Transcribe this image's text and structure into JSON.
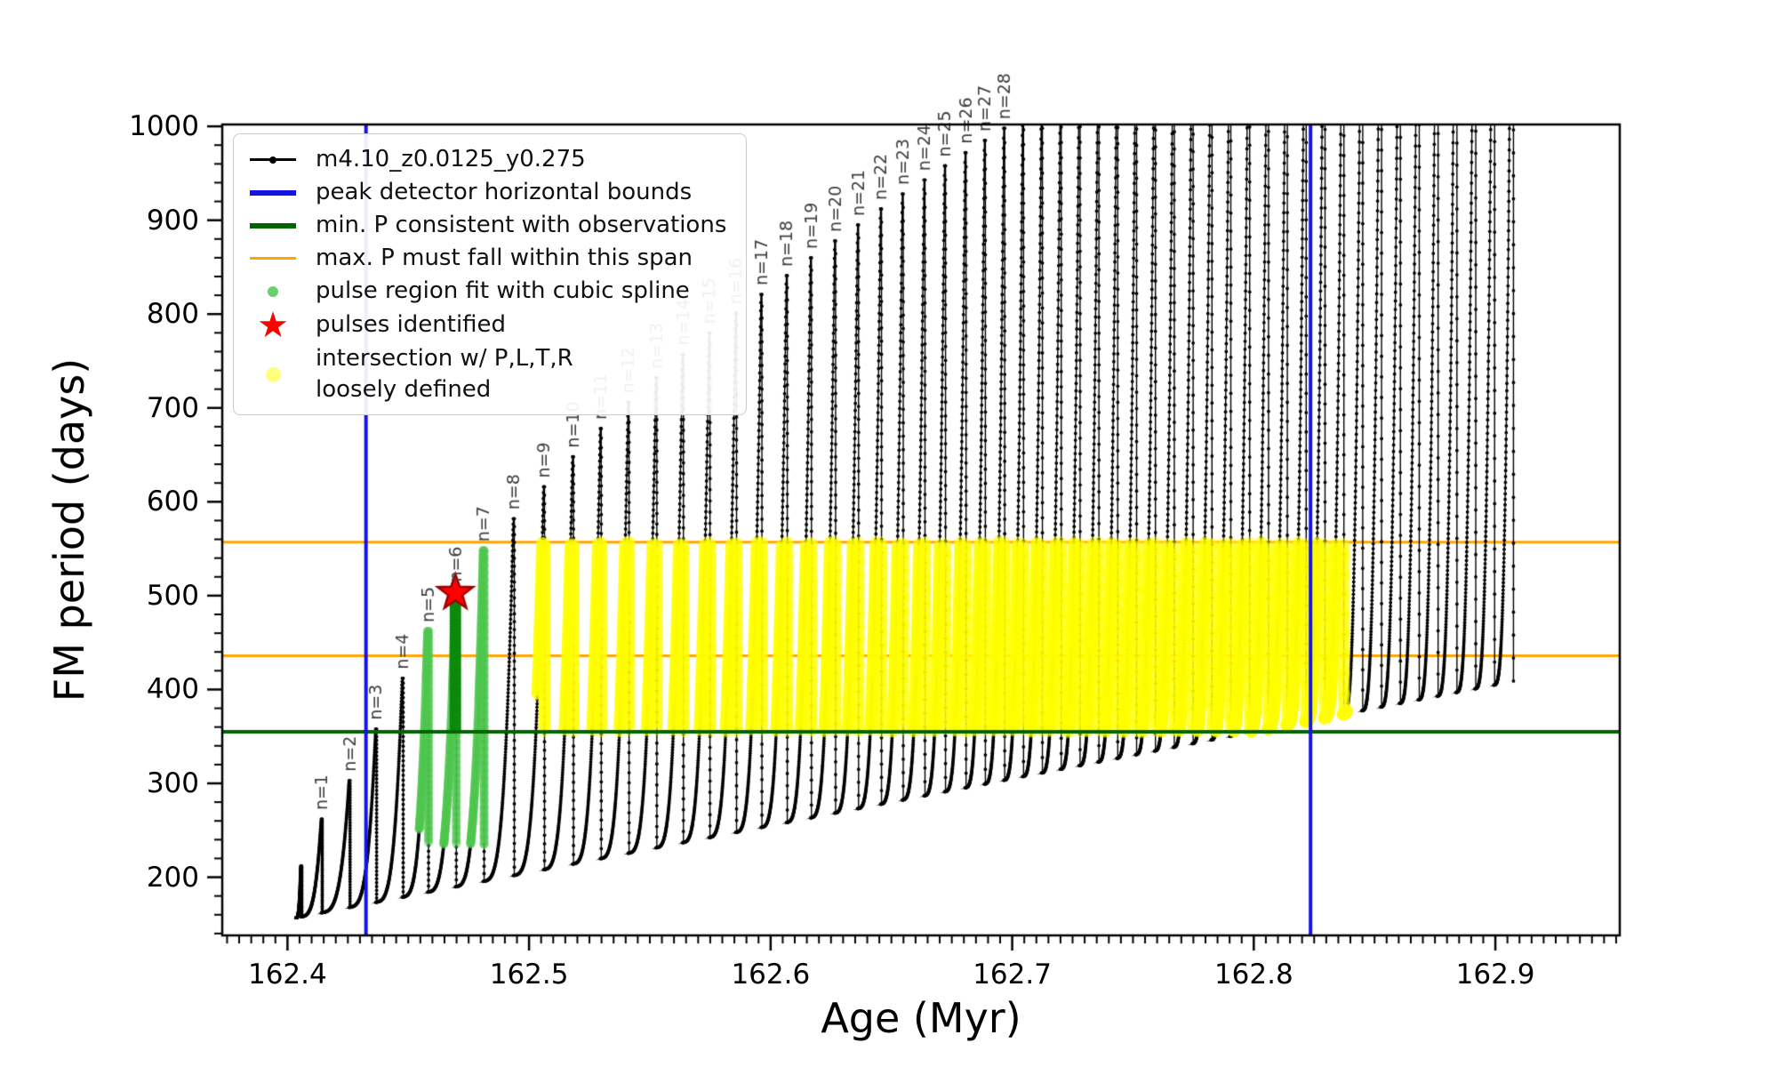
{
  "axes": {
    "xlabel": "Age (Myr)",
    "ylabel": "FM period (days)",
    "xlim": [
      162.373,
      162.9515
    ],
    "ylim": [
      138,
      1002
    ],
    "xticks": [
      162.4,
      162.5,
      162.6,
      162.7,
      162.8,
      162.9
    ],
    "xtick_labels": [
      "162.4",
      "162.5",
      "162.6",
      "162.7",
      "162.8",
      "162.9"
    ],
    "yticks": [
      200,
      300,
      400,
      500,
      600,
      700,
      800,
      900,
      1000
    ],
    "ytick_labels": [
      "200",
      "300",
      "400",
      "500",
      "600",
      "700",
      "800",
      "900",
      "1000"
    ],
    "x_minor_step": 0.005,
    "y_minor_step": 20
  },
  "legend": {
    "items": [
      {
        "label": "m4.10_z0.0125_y0.275",
        "marker": "line-dot",
        "color": "#000000"
      },
      {
        "label": "peak detector horizontal bounds",
        "marker": "thick-line",
        "color": "#1414e6"
      },
      {
        "label": "min. P consistent with observations",
        "marker": "thick-line",
        "color": "#006400"
      },
      {
        "label": "max. P must fall within this span",
        "marker": "line",
        "color": "#ffa500"
      },
      {
        "label": "pulse region fit with cubic spline",
        "marker": "dot",
        "color": "rgba(80,200,80,0.85)"
      },
      {
        "label": "pulses identified",
        "marker": "star",
        "color": "#ff0000"
      },
      {
        "label": "intersection w/ P,L,T,R\nloosely defined",
        "marker": "big-dot",
        "color": "rgba(255,255,110,0.9)"
      }
    ]
  },
  "chart_data": {
    "type": "line",
    "series_label": "m4.10_z0.0125_y0.275",
    "xlabel": "Age (Myr)",
    "ylabel": "FM period (days)",
    "xlim": [
      162.373,
      162.9515
    ],
    "ylim": [
      138,
      1002
    ],
    "start_age": 162.4035,
    "valley": {
      "x0": 162.41,
      "base": 160,
      "slope": 500
    },
    "pre_pulses": [
      {
        "age": 162.4055,
        "peak": 212
      }
    ],
    "pulses": [
      {
        "n": 1,
        "label": "n=1",
        "age": 162.414,
        "peak": 262
      },
      {
        "n": 2,
        "label": "n=2",
        "age": 162.4255,
        "peak": 303
      },
      {
        "n": 3,
        "label": "n=3",
        "age": 162.4365,
        "peak": 358
      },
      {
        "n": 4,
        "label": "n=4",
        "age": 162.4475,
        "peak": 412
      },
      {
        "n": 5,
        "label": "n=5",
        "age": 162.458,
        "peak": 462
      },
      {
        "n": 6,
        "label": "n=6",
        "age": 162.4695,
        "peak": 505
      },
      {
        "n": 7,
        "label": "n=7",
        "age": 162.481,
        "peak": 548
      },
      {
        "n": 8,
        "label": "n=8",
        "age": 162.4935,
        "peak": 582
      },
      {
        "n": 9,
        "label": "n=9",
        "age": 162.506,
        "peak": 616
      },
      {
        "n": 10,
        "label": "n=10",
        "age": 162.518,
        "peak": 648
      },
      {
        "n": 11,
        "label": "n=11",
        "age": 162.5295,
        "peak": 678
      },
      {
        "n": 12,
        "label": "n=12",
        "age": 162.541,
        "peak": 706
      },
      {
        "n": 13,
        "label": "n=13",
        "age": 162.5525,
        "peak": 732
      },
      {
        "n": 14,
        "label": "n=14",
        "age": 162.5635,
        "peak": 757
      },
      {
        "n": 15,
        "label": "n=15",
        "age": 162.5745,
        "peak": 780
      },
      {
        "n": 16,
        "label": "n=16",
        "age": 162.5855,
        "peak": 801
      },
      {
        "n": 17,
        "label": "n=17",
        "age": 162.596,
        "peak": 821
      },
      {
        "n": 18,
        "label": "n=18",
        "age": 162.6065,
        "peak": 841
      },
      {
        "n": 19,
        "label": "n=19",
        "age": 162.6165,
        "peak": 860
      },
      {
        "n": 20,
        "label": "n=20",
        "age": 162.6265,
        "peak": 878
      },
      {
        "n": 21,
        "label": "n=21",
        "age": 162.636,
        "peak": 895
      },
      {
        "n": 22,
        "label": "n=22",
        "age": 162.6455,
        "peak": 912
      },
      {
        "n": 23,
        "label": "n=23",
        "age": 162.6545,
        "peak": 928
      },
      {
        "n": 24,
        "label": "n=24",
        "age": 162.6635,
        "peak": 943
      },
      {
        "n": 25,
        "label": "n=25",
        "age": 162.672,
        "peak": 958
      },
      {
        "n": 26,
        "label": "n=26",
        "age": 162.6805,
        "peak": 972
      },
      {
        "n": 27,
        "label": "n=27",
        "age": 162.6885,
        "peak": 985
      },
      {
        "n": 28,
        "label": "n=28",
        "age": 162.6965,
        "peak": 998
      }
    ],
    "extra_pulses": [
      {
        "age": 162.7043,
        "peak": 1012
      },
      {
        "age": 162.7121,
        "peak": 1030
      },
      {
        "age": 162.7199,
        "peak": 1048
      },
      {
        "age": 162.7277,
        "peak": 1066
      },
      {
        "age": 162.7355,
        "peak": 1084
      },
      {
        "age": 162.7433,
        "peak": 1102
      },
      {
        "age": 162.7511,
        "peak": 1120
      },
      {
        "age": 162.7589,
        "peak": 1139
      },
      {
        "age": 162.7667,
        "peak": 1158
      },
      {
        "age": 162.7745,
        "peak": 1177
      },
      {
        "age": 162.7823,
        "peak": 1196
      },
      {
        "age": 162.7901,
        "peak": 1215
      },
      {
        "age": 162.7979,
        "peak": 1234
      },
      {
        "age": 162.8057,
        "peak": 1253
      },
      {
        "age": 162.8135,
        "peak": 1272
      },
      {
        "age": 162.8213,
        "peak": 1291
      },
      {
        "age": 162.8291,
        "peak": 1310
      },
      {
        "age": 162.8369,
        "peak": 1330
      },
      {
        "age": 162.8447,
        "peak": 1350
      },
      {
        "age": 162.8525,
        "peak": 1370
      },
      {
        "age": 162.8603,
        "peak": 1390
      },
      {
        "age": 162.8681,
        "peak": 1410
      },
      {
        "age": 162.8759,
        "peak": 1430
      },
      {
        "age": 162.8837,
        "peak": 1450
      },
      {
        "age": 162.8915,
        "peak": 1470
      },
      {
        "age": 162.8993,
        "peak": 1490
      },
      {
        "age": 162.9071,
        "peak": 1510
      }
    ],
    "ref_lines": {
      "blue_vertical_ages": [
        162.4325,
        162.8235
      ],
      "green_horizontal_period": 355,
      "orange_horizontal_periods": [
        436,
        557
      ]
    },
    "spline_region": {
      "age_range": [
        162.4545,
        162.484
      ],
      "period_range": [
        235,
        555
      ]
    },
    "spline_dense": {
      "age": 162.4695,
      "period_range": [
        358,
        505
      ]
    },
    "pulse_identified": {
      "age": 162.4695,
      "period": 503
    },
    "intersection_region": {
      "age_range": [
        162.5035,
        162.8385
      ],
      "period_range": [
        355,
        557
      ]
    },
    "colors": {
      "series": "#000000",
      "bounds_blue": "#1414e6",
      "min_p_green": "#006400",
      "max_p_orange": "#ffa500",
      "spline_green": "rgba(80,200,80,0.5)",
      "spline_dense_green": "#0c8a0c",
      "pulse_red": "#ff0000",
      "pulse_red_edge": "#a00000",
      "intersection_yellow": "rgba(255,255,0,0.42)",
      "pulse_label_gray": "#3f3f3f"
    }
  }
}
